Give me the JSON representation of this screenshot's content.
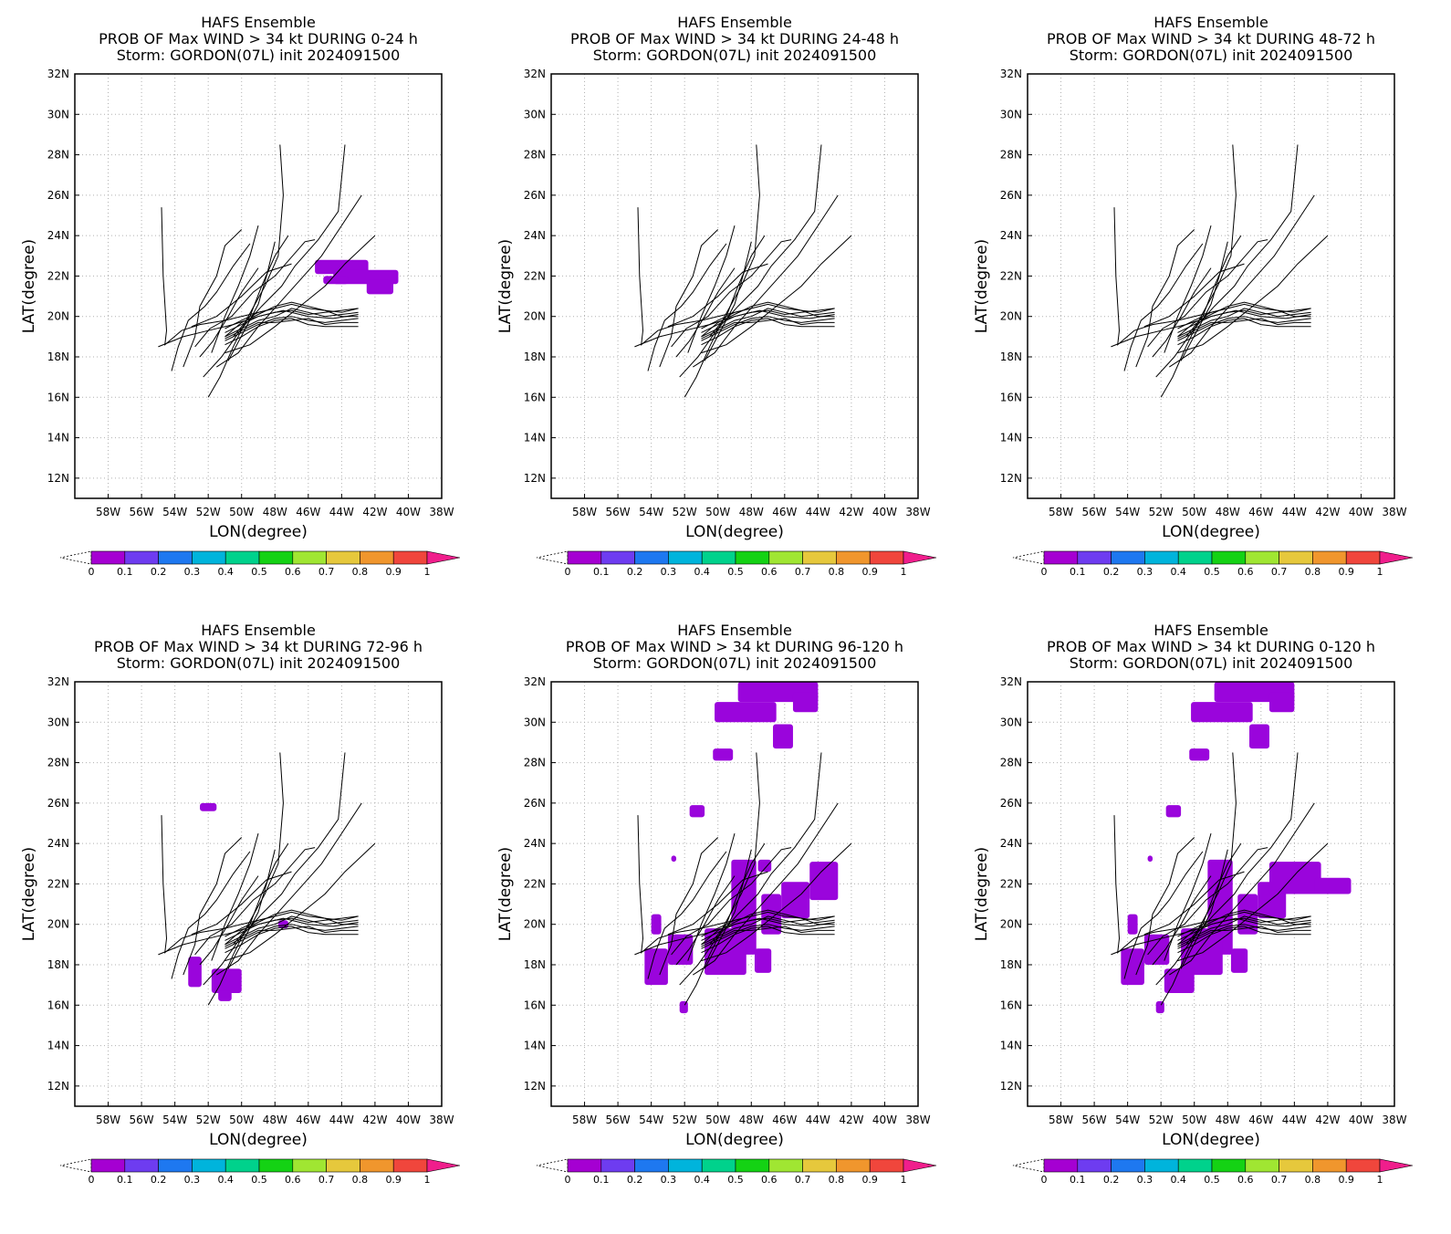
{
  "colors": {
    "probability_fill": "#9a05dc",
    "track_line": "#000000",
    "grid": "#b0b0b0",
    "colorbar": [
      "#a500d2",
      "#6e3cf0",
      "#1e78f0",
      "#00b4dc",
      "#00d28c",
      "#14d214",
      "#a0e632",
      "#e6c83c",
      "#f0962d",
      "#f0463c",
      "#f01e8c"
    ]
  },
  "colorbar_labels": [
    "0",
    "0.1",
    "0.2",
    "0.3",
    "0.4",
    "0.5",
    "0.6",
    "0.7",
    "0.8",
    "0.9",
    "1"
  ],
  "chart_data": [
    {
      "type": "map",
      "title": "HAFS Ensemble",
      "subtitle": "PROB OF Max WIND > 34 kt DURING  0-24 h",
      "storm_line": "Storm: GORDON(07L) init 2024091500",
      "xlabel": "LON(degree)",
      "ylabel": "LAT(degree)",
      "xlim": [
        -60,
        -38
      ],
      "ylim": [
        11,
        32
      ],
      "x_ticks": [
        "58W",
        "56W",
        "54W",
        "52W",
        "50W",
        "48W",
        "46W",
        "44W",
        "42W",
        "40W",
        "38W"
      ],
      "y_ticks": [
        "12N",
        "14N",
        "16N",
        "18N",
        "20N",
        "22N",
        "24N",
        "26N",
        "28N",
        "30N",
        "32N"
      ],
      "grid": true,
      "prob_regions": [
        {
          "lon": [
            -45.6,
            -42.4
          ],
          "lat": [
            22.1,
            22.8
          ]
        },
        {
          "lon": [
            -44.5,
            -40.6
          ],
          "lat": [
            21.6,
            22.3
          ]
        },
        {
          "lon": [
            -42.5,
            -40.9
          ],
          "lat": [
            21.1,
            21.8
          ]
        },
        {
          "lon": [
            -45.1,
            -43.6
          ],
          "lat": [
            21.6,
            22.0
          ]
        }
      ]
    },
    {
      "type": "map",
      "title": "HAFS Ensemble",
      "subtitle": "PROB OF Max WIND > 34 kt DURING 24-48 h",
      "storm_line": "Storm: GORDON(07L) init 2024091500",
      "xlabel": "LON(degree)",
      "ylabel": "LAT(degree)",
      "xlim": [
        -60,
        -38
      ],
      "ylim": [
        11,
        32
      ],
      "x_ticks": [
        "58W",
        "56W",
        "54W",
        "52W",
        "50W",
        "48W",
        "46W",
        "44W",
        "42W",
        "40W",
        "38W"
      ],
      "y_ticks": [
        "12N",
        "14N",
        "16N",
        "18N",
        "20N",
        "22N",
        "24N",
        "26N",
        "28N",
        "30N",
        "32N"
      ],
      "grid": true,
      "prob_regions": []
    },
    {
      "type": "map",
      "title": "HAFS Ensemble",
      "subtitle": "PROB OF Max WIND > 34 kt DURING 48-72 h",
      "storm_line": "Storm: GORDON(07L) init 2024091500",
      "xlabel": "LON(degree)",
      "ylabel": "LAT(degree)",
      "xlim": [
        -60,
        -38
      ],
      "ylim": [
        11,
        32
      ],
      "x_ticks": [
        "58W",
        "56W",
        "54W",
        "52W",
        "50W",
        "48W",
        "46W",
        "44W",
        "42W",
        "40W",
        "38W"
      ],
      "y_ticks": [
        "12N",
        "14N",
        "16N",
        "18N",
        "20N",
        "22N",
        "24N",
        "26N",
        "28N",
        "30N",
        "32N"
      ],
      "grid": true,
      "prob_regions": []
    },
    {
      "type": "map",
      "title": "HAFS Ensemble",
      "subtitle": "PROB OF Max WIND > 34 kt DURING 72-96 h",
      "storm_line": "Storm: GORDON(07L) init 2024091500",
      "xlabel": "LON(degree)",
      "ylabel": "LAT(degree)",
      "xlim": [
        -60,
        -38
      ],
      "ylim": [
        11,
        32
      ],
      "x_ticks": [
        "58W",
        "56W",
        "54W",
        "52W",
        "50W",
        "48W",
        "46W",
        "44W",
        "42W",
        "40W",
        "38W"
      ],
      "y_ticks": [
        "12N",
        "14N",
        "16N",
        "18N",
        "20N",
        "22N",
        "24N",
        "26N",
        "28N",
        "30N",
        "32N"
      ],
      "grid": true,
      "prob_regions": [
        {
          "lon": [
            -52.5,
            -51.5
          ],
          "lat": [
            25.6,
            26.0
          ]
        },
        {
          "lon": [
            -53.2,
            -52.4
          ],
          "lat": [
            16.9,
            18.4
          ]
        },
        {
          "lon": [
            -51.8,
            -50.0
          ],
          "lat": [
            16.6,
            17.8
          ]
        },
        {
          "lon": [
            -51.4,
            -50.6
          ],
          "lat": [
            16.2,
            16.7
          ]
        },
        {
          "lon": [
            -47.8,
            -47.2
          ],
          "lat": [
            19.8,
            20.2
          ]
        }
      ]
    },
    {
      "type": "map",
      "title": "HAFS Ensemble",
      "subtitle": "PROB OF Max WIND > 34 kt DURING 96-120 h",
      "storm_line": "Storm: GORDON(07L) init 2024091500",
      "xlabel": "LON(degree)",
      "ylabel": "LAT(degree)",
      "xlim": [
        -60,
        -38
      ],
      "ylim": [
        11,
        32
      ],
      "x_ticks": [
        "58W",
        "56W",
        "54W",
        "52W",
        "50W",
        "48W",
        "46W",
        "44W",
        "42W",
        "40W",
        "38W"
      ],
      "y_ticks": [
        "12N",
        "14N",
        "16N",
        "18N",
        "20N",
        "22N",
        "24N",
        "26N",
        "28N",
        "30N",
        "32N"
      ],
      "grid": true,
      "prob_regions": [
        {
          "lon": [
            -48.8,
            -44.0
          ],
          "lat": [
            31.0,
            32.0
          ]
        },
        {
          "lon": [
            -50.2,
            -46.5
          ],
          "lat": [
            30.0,
            31.0
          ]
        },
        {
          "lon": [
            -45.5,
            -44.0
          ],
          "lat": [
            30.5,
            31.5
          ]
        },
        {
          "lon": [
            -46.7,
            -45.5
          ],
          "lat": [
            28.7,
            29.9
          ]
        },
        {
          "lon": [
            -50.3,
            -49.1
          ],
          "lat": [
            28.1,
            28.7
          ]
        },
        {
          "lon": [
            -51.7,
            -50.8
          ],
          "lat": [
            25.3,
            25.9
          ]
        },
        {
          "lon": [
            -52.8,
            -52.5
          ],
          "lat": [
            23.1,
            23.4
          ]
        },
        {
          "lon": [
            -54.0,
            -53.4
          ],
          "lat": [
            19.5,
            20.5
          ]
        },
        {
          "lon": [
            -54.4,
            -53.0
          ],
          "lat": [
            17.0,
            18.8
          ]
        },
        {
          "lon": [
            -53.0,
            -51.5
          ],
          "lat": [
            18.0,
            19.5
          ]
        },
        {
          "lon": [
            -52.3,
            -51.8
          ],
          "lat": [
            15.6,
            16.2
          ]
        },
        {
          "lon": [
            -49.2,
            -47.7
          ],
          "lat": [
            18.5,
            23.2
          ]
        },
        {
          "lon": [
            -50.8,
            -48.3
          ],
          "lat": [
            17.5,
            19.8
          ]
        },
        {
          "lon": [
            -47.4,
            -46.2
          ],
          "lat": [
            19.5,
            21.5
          ]
        },
        {
          "lon": [
            -46.2,
            -44.5
          ],
          "lat": [
            20.3,
            22.1
          ]
        },
        {
          "lon": [
            -44.5,
            -42.8
          ],
          "lat": [
            21.2,
            23.1
          ]
        },
        {
          "lon": [
            -47.8,
            -46.8
          ],
          "lat": [
            17.6,
            18.8
          ]
        },
        {
          "lon": [
            -47.6,
            -46.8
          ],
          "lat": [
            22.6,
            23.2
          ]
        }
      ]
    },
    {
      "type": "map",
      "title": "HAFS Ensemble",
      "subtitle": "PROB OF Max WIND > 34 kt DURING 0-120 h",
      "storm_line": "Storm: GORDON(07L) init 2024091500",
      "xlabel": "LON(degree)",
      "ylabel": "LAT(degree)",
      "xlim": [
        -60,
        -38
      ],
      "ylim": [
        11,
        32
      ],
      "x_ticks": [
        "58W",
        "56W",
        "54W",
        "52W",
        "50W",
        "48W",
        "46W",
        "44W",
        "42W",
        "40W",
        "38W"
      ],
      "y_ticks": [
        "12N",
        "14N",
        "16N",
        "18N",
        "20N",
        "22N",
        "24N",
        "26N",
        "28N",
        "30N",
        "32N"
      ],
      "grid": true,
      "prob_regions": [
        {
          "lon": [
            -48.8,
            -44.0
          ],
          "lat": [
            31.0,
            32.0
          ]
        },
        {
          "lon": [
            -50.2,
            -46.5
          ],
          "lat": [
            30.0,
            31.0
          ]
        },
        {
          "lon": [
            -45.5,
            -44.0
          ],
          "lat": [
            30.5,
            31.5
          ]
        },
        {
          "lon": [
            -46.7,
            -45.5
          ],
          "lat": [
            28.7,
            29.9
          ]
        },
        {
          "lon": [
            -50.3,
            -49.1
          ],
          "lat": [
            28.1,
            28.7
          ]
        },
        {
          "lon": [
            -51.7,
            -50.8
          ],
          "lat": [
            25.3,
            25.9
          ]
        },
        {
          "lon": [
            -52.8,
            -52.5
          ],
          "lat": [
            23.1,
            23.4
          ]
        },
        {
          "lon": [
            -54.0,
            -53.4
          ],
          "lat": [
            19.5,
            20.5
          ]
        },
        {
          "lon": [
            -54.4,
            -53.0
          ],
          "lat": [
            17.0,
            18.8
          ]
        },
        {
          "lon": [
            -53.0,
            -51.5
          ],
          "lat": [
            18.0,
            19.5
          ]
        },
        {
          "lon": [
            -52.3,
            -51.8
          ],
          "lat": [
            15.6,
            16.2
          ]
        },
        {
          "lon": [
            -49.2,
            -47.7
          ],
          "lat": [
            18.5,
            23.2
          ]
        },
        {
          "lon": [
            -50.8,
            -48.3
          ],
          "lat": [
            17.5,
            19.8
          ]
        },
        {
          "lon": [
            -47.4,
            -46.2
          ],
          "lat": [
            19.5,
            21.5
          ]
        },
        {
          "lon": [
            -46.2,
            -44.5
          ],
          "lat": [
            20.3,
            22.1
          ]
        },
        {
          "lon": [
            -45.5,
            -42.4
          ],
          "lat": [
            21.5,
            23.1
          ]
        },
        {
          "lon": [
            -42.8,
            -40.6
          ],
          "lat": [
            21.5,
            22.3
          ]
        },
        {
          "lon": [
            -47.8,
            -46.8
          ],
          "lat": [
            17.6,
            18.8
          ]
        },
        {
          "lon": [
            -51.8,
            -50.0
          ],
          "lat": [
            16.6,
            17.8
          ]
        }
      ]
    }
  ],
  "tracks": [
    [
      [
        -51.0,
        19.2
      ],
      [
        -50.0,
        19.6
      ],
      [
        -49.0,
        20.0
      ],
      [
        -48.0,
        20.2
      ],
      [
        -47.0,
        20.3
      ],
      [
        -46.0,
        20.1
      ],
      [
        -45.0,
        20.2
      ],
      [
        -44.0,
        20.3
      ],
      [
        -43.0,
        20.4
      ]
    ],
    [
      [
        -51.0,
        19.0
      ],
      [
        -50.0,
        19.4
      ],
      [
        -49.0,
        19.8
      ],
      [
        -48.0,
        20.0
      ],
      [
        -47.0,
        20.4
      ],
      [
        -46.0,
        20.2
      ],
      [
        -45.0,
        20.0
      ],
      [
        -44.0,
        20.1
      ],
      [
        -43.0,
        20.2
      ]
    ],
    [
      [
        -51.0,
        18.8
      ],
      [
        -50.0,
        19.2
      ],
      [
        -49.0,
        19.6
      ],
      [
        -48.0,
        19.9
      ],
      [
        -47.0,
        20.0
      ],
      [
        -46.0,
        19.8
      ],
      [
        -45.0,
        19.7
      ],
      [
        -44.0,
        19.8
      ],
      [
        -43.0,
        19.9
      ]
    ],
    [
      [
        -51.0,
        18.6
      ],
      [
        -50.0,
        19.0
      ],
      [
        -49.0,
        19.5
      ],
      [
        -48.0,
        19.8
      ],
      [
        -47.0,
        19.9
      ],
      [
        -46.0,
        19.6
      ],
      [
        -45.0,
        19.5
      ],
      [
        -44.0,
        19.5
      ],
      [
        -43.0,
        19.5
      ]
    ],
    [
      [
        -51.0,
        19.4
      ],
      [
        -50.0,
        19.8
      ],
      [
        -49.0,
        20.2
      ],
      [
        -48.0,
        20.4
      ],
      [
        -47.0,
        20.6
      ],
      [
        -46.0,
        20.4
      ],
      [
        -45.0,
        20.3
      ],
      [
        -44.0,
        20.2
      ],
      [
        -43.0,
        20.4
      ]
    ],
    [
      [
        -51.0,
        19.0
      ],
      [
        -50.0,
        19.7
      ],
      [
        -49.0,
        20.1
      ],
      [
        -48.0,
        20.5
      ],
      [
        -47.0,
        20.7
      ],
      [
        -46.0,
        20.5
      ],
      [
        -45.0,
        20.3
      ],
      [
        -44.0,
        20.0
      ],
      [
        -43.0,
        20.0
      ]
    ],
    [
      [
        -51.0,
        18.9
      ],
      [
        -50.0,
        19.3
      ],
      [
        -49.0,
        19.7
      ],
      [
        -48.0,
        19.7
      ],
      [
        -47.0,
        19.8
      ],
      [
        -46.0,
        19.9
      ],
      [
        -45.0,
        19.6
      ],
      [
        -44.0,
        19.7
      ],
      [
        -43.0,
        19.7
      ]
    ],
    [
      [
        -55.0,
        18.5
      ],
      [
        -53.5,
        19.0
      ],
      [
        -52.0,
        19.3
      ],
      [
        -50.5,
        19.6
      ],
      [
        -49.0,
        20.0
      ],
      [
        -47.5,
        20.3
      ],
      [
        -46.0,
        20.0
      ],
      [
        -44.5,
        19.9
      ],
      [
        -43.0,
        20.1
      ]
    ],
    [
      [
        -54.8,
        25.4
      ],
      [
        -54.7,
        22.0
      ],
      [
        -54.5,
        19.3
      ],
      [
        -54.6,
        18.6
      ],
      [
        -53.6,
        19.3
      ],
      [
        -52.5,
        19.6
      ],
      [
        -51.0,
        19.8
      ],
      [
        -49.5,
        20.1
      ],
      [
        -48.0,
        20.4
      ]
    ],
    [
      [
        -53.5,
        17.5
      ],
      [
        -52.8,
        19.0
      ],
      [
        -52.5,
        20.5
      ],
      [
        -51.5,
        22.0
      ],
      [
        -51.0,
        23.5
      ],
      [
        -50.0,
        24.3
      ]
    ],
    [
      [
        -54.2,
        17.3
      ],
      [
        -53.8,
        18.5
      ],
      [
        -53.2,
        19.8
      ],
      [
        -52.2,
        20.5
      ],
      [
        -51.5,
        21.2
      ],
      [
        -50.5,
        22.5
      ],
      [
        -49.5,
        23.6
      ]
    ],
    [
      [
        -52.0,
        16.0
      ],
      [
        -51.3,
        17.0
      ],
      [
        -50.5,
        18.5
      ],
      [
        -49.6,
        20.0
      ],
      [
        -48.6,
        21.5
      ],
      [
        -47.8,
        23.0
      ],
      [
        -47.5,
        26.0
      ],
      [
        -47.7,
        28.5
      ]
    ],
    [
      [
        -52.3,
        17.0
      ],
      [
        -51.2,
        18.0
      ],
      [
        -50.0,
        19.4
      ],
      [
        -48.8,
        20.5
      ],
      [
        -47.6,
        21.5
      ],
      [
        -46.8,
        22.5
      ],
      [
        -45.4,
        23.8
      ],
      [
        -44.2,
        25.2
      ],
      [
        -43.8,
        28.5
      ]
    ],
    [
      [
        -51.5,
        17.5
      ],
      [
        -50.2,
        18.2
      ],
      [
        -49.0,
        19.5
      ],
      [
        -47.8,
        20.6
      ],
      [
        -46.5,
        21.8
      ],
      [
        -45.2,
        23.0
      ],
      [
        -44.0,
        24.5
      ],
      [
        -42.8,
        26.0
      ]
    ],
    [
      [
        -51.0,
        18.2
      ],
      [
        -49.5,
        18.6
      ],
      [
        -48.0,
        19.5
      ],
      [
        -46.5,
        20.5
      ],
      [
        -45.0,
        21.5
      ],
      [
        -43.8,
        22.6
      ],
      [
        -42.0,
        24.0
      ]
    ],
    [
      [
        -50.5,
        19.0
      ],
      [
        -49.5,
        20.0
      ],
      [
        -48.8,
        21.5
      ],
      [
        -48.0,
        23.0
      ],
      [
        -47.2,
        24.0
      ]
    ],
    [
      [
        -50.8,
        17.8
      ],
      [
        -49.9,
        19.2
      ],
      [
        -49.0,
        20.6
      ],
      [
        -48.5,
        22.0
      ],
      [
        -48.0,
        23.7
      ]
    ],
    [
      [
        -51.8,
        18.2
      ],
      [
        -51.0,
        20.0
      ],
      [
        -50.2,
        21.5
      ],
      [
        -49.5,
        23.0
      ],
      [
        -49.0,
        24.5
      ]
    ],
    [
      [
        -52.8,
        18.5
      ],
      [
        -51.9,
        19.4
      ],
      [
        -50.6,
        20.0
      ],
      [
        -49.3,
        21.2
      ],
      [
        -48.0,
        22.0
      ],
      [
        -46.2,
        23.7
      ],
      [
        -45.6,
        23.8
      ]
    ],
    [
      [
        -53.0,
        19.5
      ],
      [
        -51.5,
        20.0
      ],
      [
        -50.0,
        21.0
      ],
      [
        -48.5,
        22.2
      ],
      [
        -47.0,
        22.6
      ]
    ],
    [
      [
        -52.5,
        18.0
      ],
      [
        -51.7,
        18.8
      ],
      [
        -50.8,
        20.0
      ],
      [
        -50.0,
        21.2
      ],
      [
        -49.0,
        22.4
      ]
    ]
  ]
}
